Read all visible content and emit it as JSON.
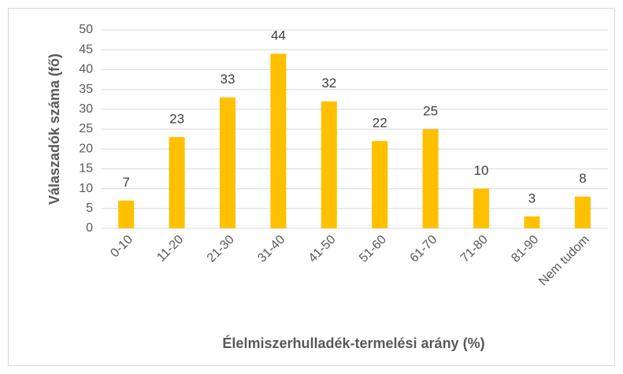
{
  "chart_data": {
    "type": "bar",
    "x_label": "Élelmiszerhulladék-termelési arány (%)",
    "y_label": "Válaszadók száma (fő)",
    "categories": [
      "0-10",
      "11-20",
      "21-30",
      "31-40",
      "41-50",
      "51-60",
      "61-70",
      "71-80",
      "81-90",
      "Nem tudom"
    ],
    "values": [
      7,
      23,
      33,
      44,
      32,
      22,
      25,
      10,
      3,
      8
    ],
    "color": "#ffc000",
    "ylim": [
      0,
      50
    ],
    "yticks": [
      0,
      5,
      10,
      15,
      20,
      25,
      30,
      35,
      40,
      45,
      50
    ],
    "grid": true
  }
}
